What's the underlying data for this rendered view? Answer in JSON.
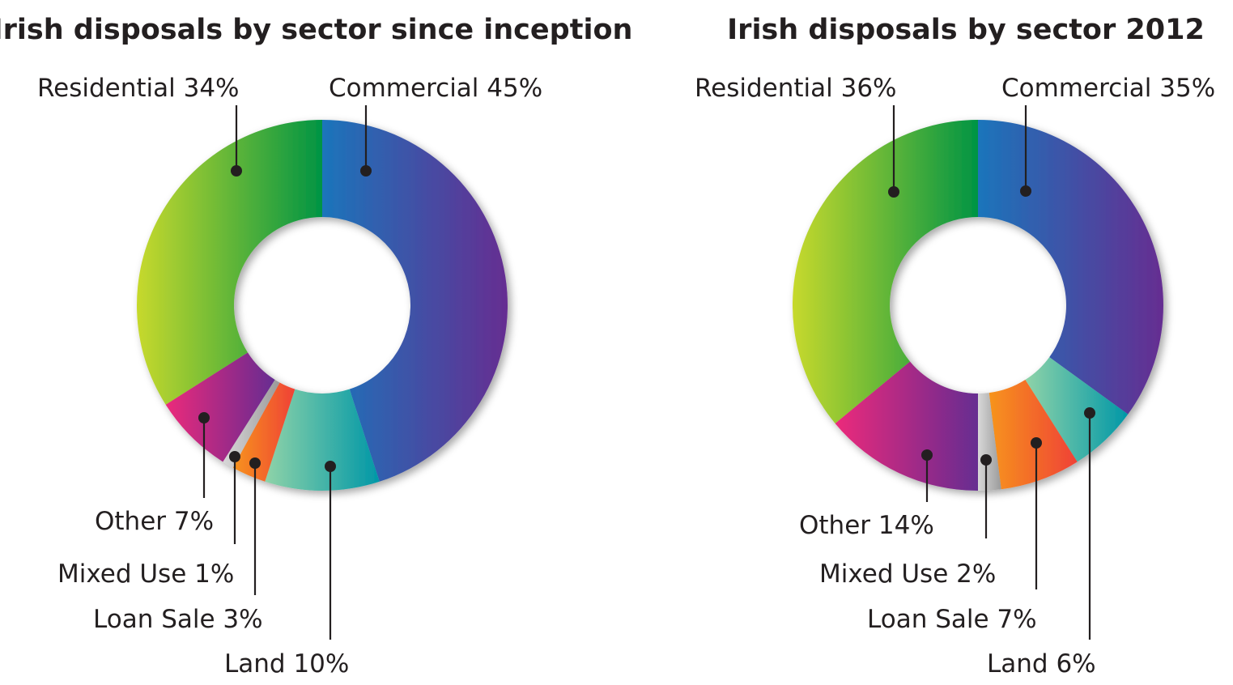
{
  "chart_data": [
    {
      "type": "pie",
      "title": "Irish disposals by sector since inception",
      "categories": [
        "Commercial",
        "Land",
        "Loan Sale",
        "Mixed Use",
        "Other",
        "Residential"
      ],
      "values": [
        45,
        10,
        3,
        1,
        7,
        34
      ],
      "labels": [
        "Commercial 45%",
        "Land 10%",
        "Loan Sale 3%",
        "Mixed Use 1%",
        "Other 7%",
        "Residential 34%"
      ],
      "unit": "%"
    },
    {
      "type": "pie",
      "title": "Irish disposals by sector 2012",
      "categories": [
        "Commercial",
        "Land",
        "Loan Sale",
        "Mixed Use",
        "Other",
        "Residential"
      ],
      "values": [
        35,
        6,
        7,
        2,
        14,
        36
      ],
      "labels": [
        "Commercial 35%",
        "Land 6%",
        "Loan Sale 7%",
        "Mixed Use 2%",
        "Other 14%",
        "Residential 36%"
      ],
      "unit": "%"
    }
  ],
  "colors": {
    "Commercial": [
      "#1b75bb",
      "#662d91"
    ],
    "Land": [
      "#8fd3a8",
      "#0097a7"
    ],
    "Loan Sale": [
      "#f7941d",
      "#ef4136"
    ],
    "Mixed Use": [
      "#d8d8d8",
      "#9a9a9a"
    ],
    "Other": [
      "#ec297b",
      "#662d91"
    ],
    "Residential": [
      "#c7d92c",
      "#009444"
    ]
  }
}
